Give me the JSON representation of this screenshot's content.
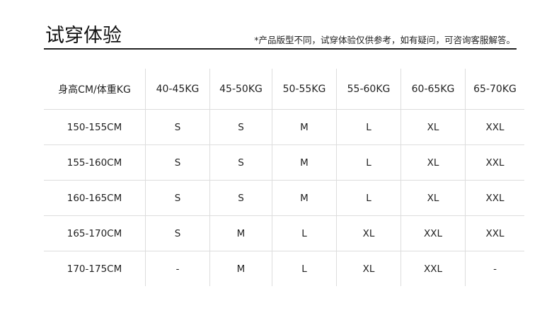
{
  "title": "试穿体验",
  "note": "*产品版型不同，试穿体验仅供参考，如有疑问，可咨询客服解答。",
  "table": {
    "headers": [
      "身高CM/体重KG",
      "40-45KG",
      "45-50KG",
      "50-55KG",
      "55-60KG",
      "60-65KG",
      "65-70KG"
    ],
    "rows": [
      [
        "150-155CM",
        "S",
        "S",
        "M",
        "L",
        "XL",
        "XXL"
      ],
      [
        "155-160CM",
        "S",
        "S",
        "M",
        "L",
        "XL",
        "XXL"
      ],
      [
        "160-165CM",
        "S",
        "S",
        "M",
        "L",
        "XL",
        "XXL"
      ],
      [
        "165-170CM",
        "S",
        "M",
        "L",
        "XL",
        "XXL",
        "XXL"
      ],
      [
        "170-175CM",
        "-",
        "M",
        "L",
        "XL",
        "XXL",
        "-"
      ]
    ]
  }
}
